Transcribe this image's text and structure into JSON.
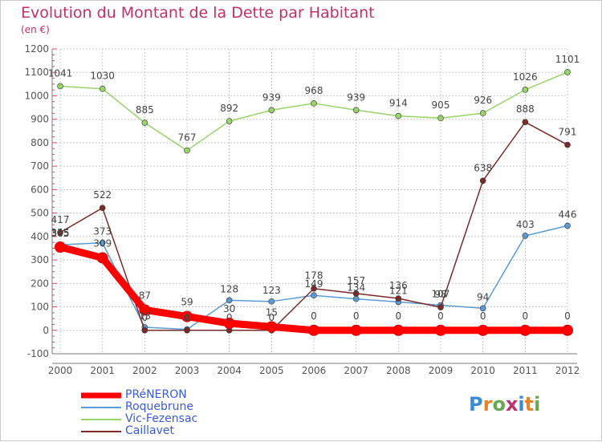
{
  "title": "Evolution du Montant de la Dette par Habitant",
  "unit_label": "(en €)",
  "brand": "Proxiti",
  "colors": {
    "title": "#c0306a",
    "legend_text": "#3d5bd6",
    "grid": "#c8c8c8",
    "axis": "#7a7a7a",
    "tick_minor": "#e0405a"
  },
  "chart_data": {
    "type": "line",
    "title": "Evolution du Montant de la Dette par Habitant",
    "ylabel": "(en €)",
    "xlabel": "",
    "x": [
      "2000",
      "2001",
      "2002",
      "2003",
      "2004",
      "2005",
      "2006",
      "2007",
      "2008",
      "2009",
      "2010",
      "2011",
      "2012"
    ],
    "ylim": [
      -100,
      1200
    ],
    "yticks": [
      -100,
      0,
      100,
      200,
      300,
      400,
      500,
      600,
      700,
      800,
      900,
      1000,
      1100,
      1200
    ],
    "grid": true,
    "legend_position": "bottom-left",
    "series": [
      {
        "name": "PRéNERON",
        "color": "#ff0000",
        "values": [
          355,
          309,
          87,
          59,
          30,
          15,
          0,
          0,
          0,
          0,
          0,
          0,
          0
        ],
        "labels": [
          "355",
          "309",
          "87",
          "59",
          "30",
          "15",
          "0",
          "0",
          "0",
          "0",
          "0",
          "0",
          "0"
        ]
      },
      {
        "name": "Roquebrune",
        "color": "#5b9bd5",
        "values": [
          365,
          373,
          13,
          4,
          128,
          123,
          149,
          134,
          121,
          107,
          94,
          403,
          446
        ],
        "labels": [
          "365",
          "373",
          "13",
          "4",
          "128",
          "123",
          "149",
          "134",
          "121",
          "107",
          "94",
          "403",
          "446"
        ]
      },
      {
        "name": "Vic-Fezensac",
        "color": "#99d36a",
        "values": [
          1041,
          1030,
          885,
          767,
          892,
          939,
          968,
          939,
          914,
          905,
          926,
          1026,
          1101
        ],
        "labels": [
          "1041",
          "1030",
          "885",
          "767",
          "892",
          "939",
          "968",
          "939",
          "914",
          "905",
          "926",
          "1026",
          "1101"
        ]
      },
      {
        "name": "Caillavet",
        "color": "#7b2a2a",
        "values": [
          417,
          522,
          0,
          0,
          0,
          0,
          178,
          157,
          136,
          98,
          638,
          888,
          791
        ],
        "labels": [
          "417",
          "522",
          "0",
          "0",
          "0",
          "0",
          "178",
          "157",
          "136",
          "98",
          "638",
          "888",
          "791"
        ]
      }
    ]
  }
}
